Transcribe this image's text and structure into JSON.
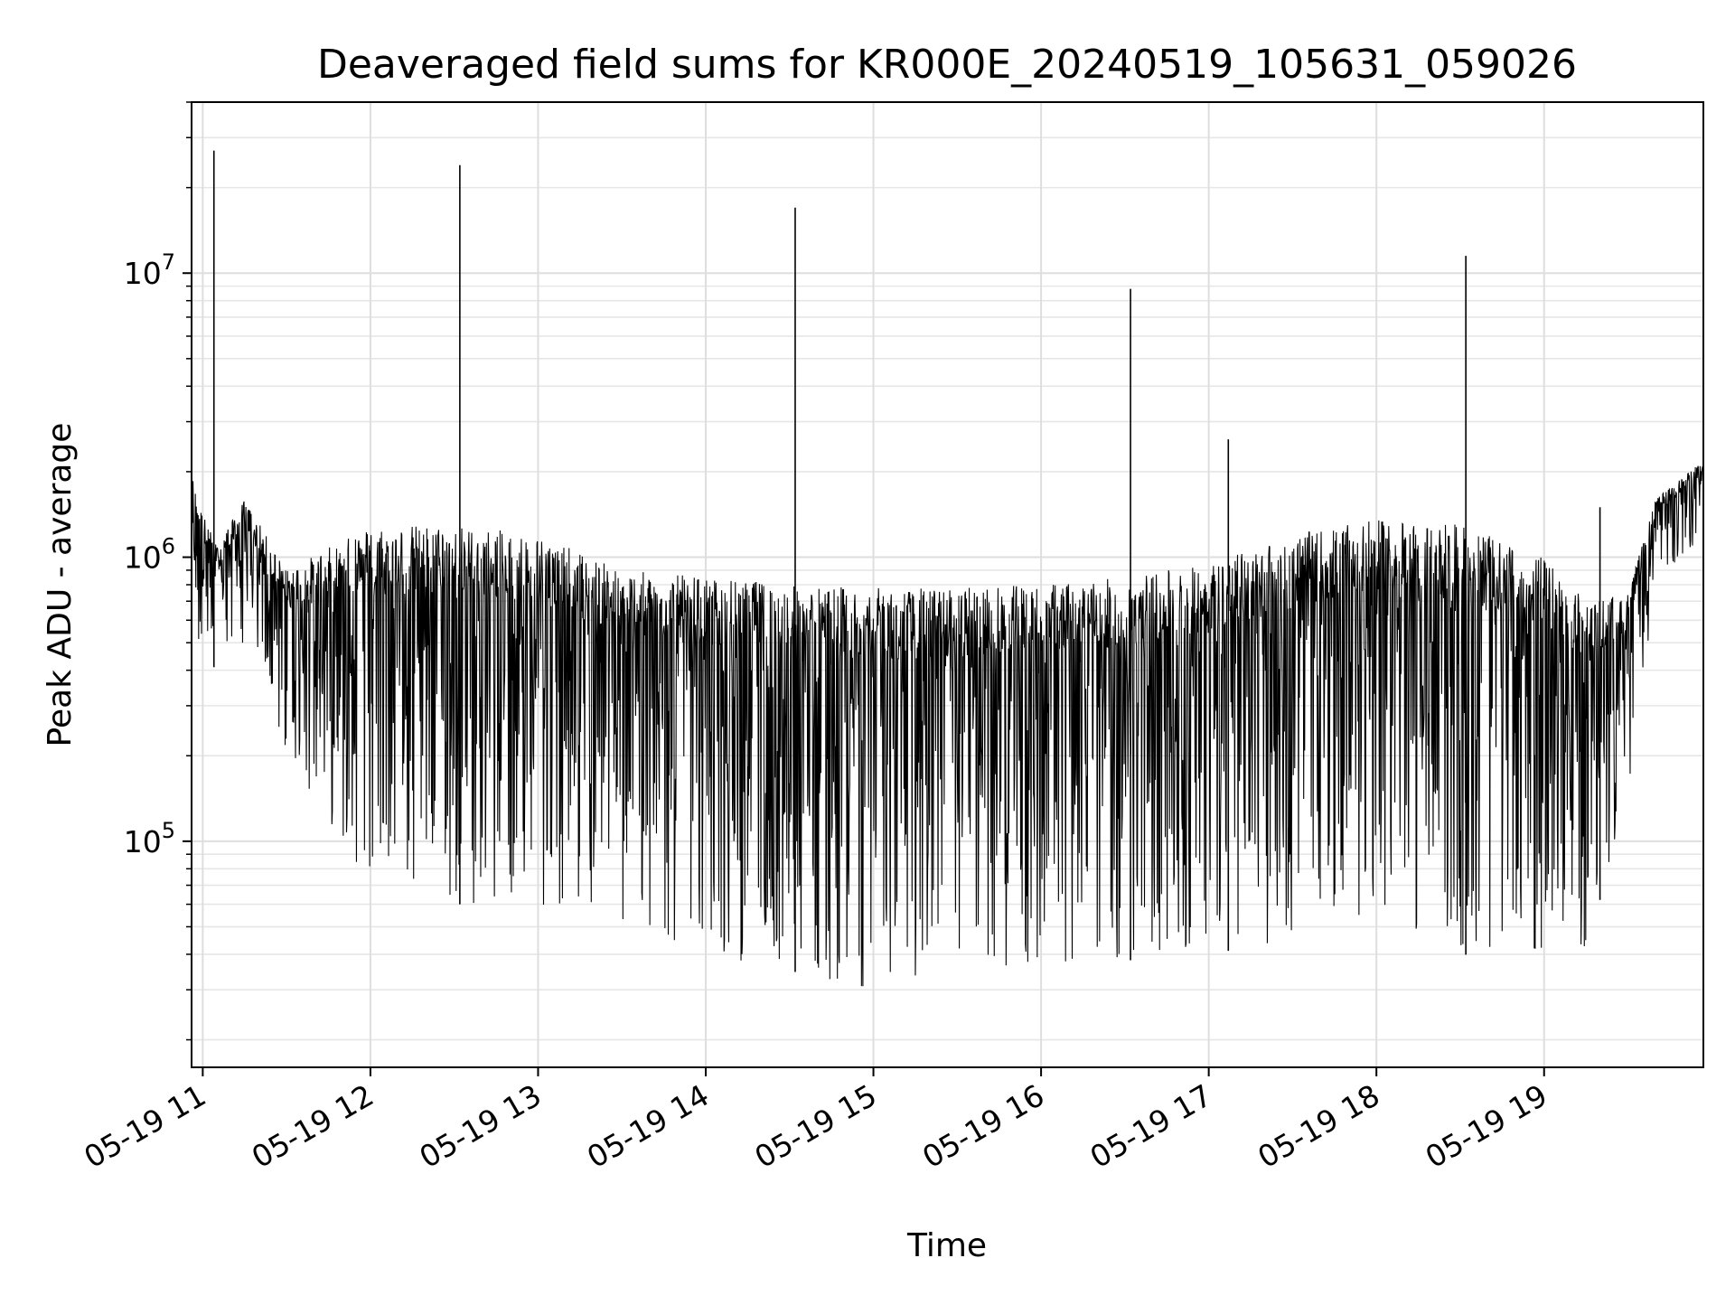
{
  "chart_data": {
    "type": "line",
    "title": "Deaveraged field sums for KR000E_20240519_105631_059026",
    "xlabel": "Time",
    "ylabel": "Peak ADU - average",
    "x_scale": "time",
    "y_scale": "log",
    "xlim": [
      "2024-05-19 10:56",
      "2024-05-19 19:57"
    ],
    "ylim": [
      16000,
      40000000
    ],
    "grid": true,
    "line_color": "#000000",
    "x_ticks": [
      {
        "value": "2024-05-19 11:00",
        "label": "05-19 11"
      },
      {
        "value": "2024-05-19 12:00",
        "label": "05-19 12"
      },
      {
        "value": "2024-05-19 13:00",
        "label": "05-19 13"
      },
      {
        "value": "2024-05-19 14:00",
        "label": "05-19 14"
      },
      {
        "value": "2024-05-19 15:00",
        "label": "05-19 15"
      },
      {
        "value": "2024-05-19 16:00",
        "label": "05-19 16"
      },
      {
        "value": "2024-05-19 17:00",
        "label": "05-19 17"
      },
      {
        "value": "2024-05-19 18:00",
        "label": "05-19 18"
      },
      {
        "value": "2024-05-19 19:00",
        "label": "05-19 19"
      }
    ],
    "y_ticks": [
      {
        "value": 100000,
        "base": "10",
        "exp": "5"
      },
      {
        "value": 1000000,
        "base": "10",
        "exp": "6"
      },
      {
        "value": 10000000,
        "base": "10",
        "exp": "7"
      }
    ],
    "series": [
      {
        "upper_envelope": {
          "x": [
            "2024-05-19 10:56",
            "2024-05-19 10:59",
            "2024-05-19 11:05",
            "2024-05-19 11:15",
            "2024-05-19 11:30",
            "2024-05-19 12:00",
            "2024-05-19 12:30",
            "2024-05-19 13:00",
            "2024-05-19 13:30",
            "2024-05-19 14:00",
            "2024-05-19 14:30",
            "2024-05-19 15:00",
            "2024-05-19 15:30",
            "2024-05-19 16:00",
            "2024-05-19 16:30",
            "2024-05-19 17:00",
            "2024-05-19 17:30",
            "2024-05-19 18:00",
            "2024-05-19 18:30",
            "2024-05-19 19:00",
            "2024-05-19 19:15",
            "2024-05-19 19:30",
            "2024-05-19 19:40",
            "2024-05-19 19:57"
          ],
          "y": [
            2000000,
            1500000,
            1100000,
            1600000,
            900000,
            1300000,
            1300000,
            1200000,
            900000,
            850000,
            800000,
            780000,
            780000,
            800000,
            850000,
            950000,
            1200000,
            1350000,
            1300000,
            1000000,
            700000,
            750000,
            1600000,
            2200000
          ]
        },
        "lower_envelope": {
          "x": [
            "2024-05-19 10:56",
            "2024-05-19 11:05",
            "2024-05-19 11:15",
            "2024-05-19 11:30",
            "2024-05-19 12:00",
            "2024-05-19 12:30",
            "2024-05-19 13:00",
            "2024-05-19 13:30",
            "2024-05-19 13:50",
            "2024-05-19 14:00",
            "2024-05-19 14:30",
            "2024-05-19 15:00",
            "2024-05-19 15:30",
            "2024-05-19 16:00",
            "2024-05-19 16:30",
            "2024-05-19 17:00",
            "2024-05-19 17:30",
            "2024-05-19 18:00",
            "2024-05-19 18:30",
            "2024-05-19 19:00",
            "2024-05-19 19:15",
            "2024-05-19 19:30",
            "2024-05-19 19:40",
            "2024-05-19 19:57"
          ],
          "y": [
            500000,
            400000,
            500000,
            200000,
            70000,
            60000,
            60000,
            50000,
            40000,
            40000,
            35000,
            30000,
            32000,
            35000,
            38000,
            40000,
            45000,
            55000,
            40000,
            38000,
            40000,
            150000,
            800000,
            1200000
          ]
        },
        "spikes": [
          {
            "x": "2024-05-19 11:04",
            "y": 27000000
          },
          {
            "x": "2024-05-19 12:32",
            "y": 24000000
          },
          {
            "x": "2024-05-19 14:32",
            "y": 17000000
          },
          {
            "x": "2024-05-19 16:32",
            "y": 8800000
          },
          {
            "x": "2024-05-19 17:07",
            "y": 2600000
          },
          {
            "x": "2024-05-19 18:32",
            "y": 11500000
          },
          {
            "x": "2024-05-19 19:20",
            "y": 1500000
          }
        ]
      }
    ]
  }
}
